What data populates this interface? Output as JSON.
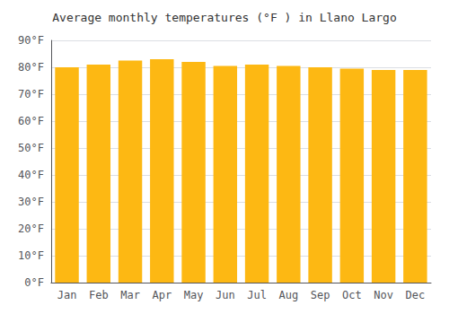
{
  "chart_data": {
    "type": "bar",
    "title": "Average monthly temperatures (°F ) in Llano Largo",
    "categories": [
      "Jan",
      "Feb",
      "Mar",
      "Apr",
      "May",
      "Jun",
      "Jul",
      "Aug",
      "Sep",
      "Oct",
      "Nov",
      "Dec"
    ],
    "values": [
      80,
      81,
      82.5,
      83,
      82,
      80.5,
      81,
      80.5,
      80,
      79.5,
      79,
      79
    ],
    "color": "#FDB813",
    "ylim": [
      0,
      90
    ],
    "yticks": [
      {
        "value": 0,
        "label": "0°F"
      },
      {
        "value": 10,
        "label": "10°F"
      },
      {
        "value": 20,
        "label": "20°F"
      },
      {
        "value": 30,
        "label": "30°F"
      },
      {
        "value": 40,
        "label": "40°F"
      },
      {
        "value": 50,
        "label": "50°F"
      },
      {
        "value": 60,
        "label": "60°F"
      },
      {
        "value": 70,
        "label": "70°F"
      },
      {
        "value": 80,
        "label": "80°F"
      },
      {
        "value": 90,
        "label": "90°F"
      }
    ],
    "grid": true
  }
}
